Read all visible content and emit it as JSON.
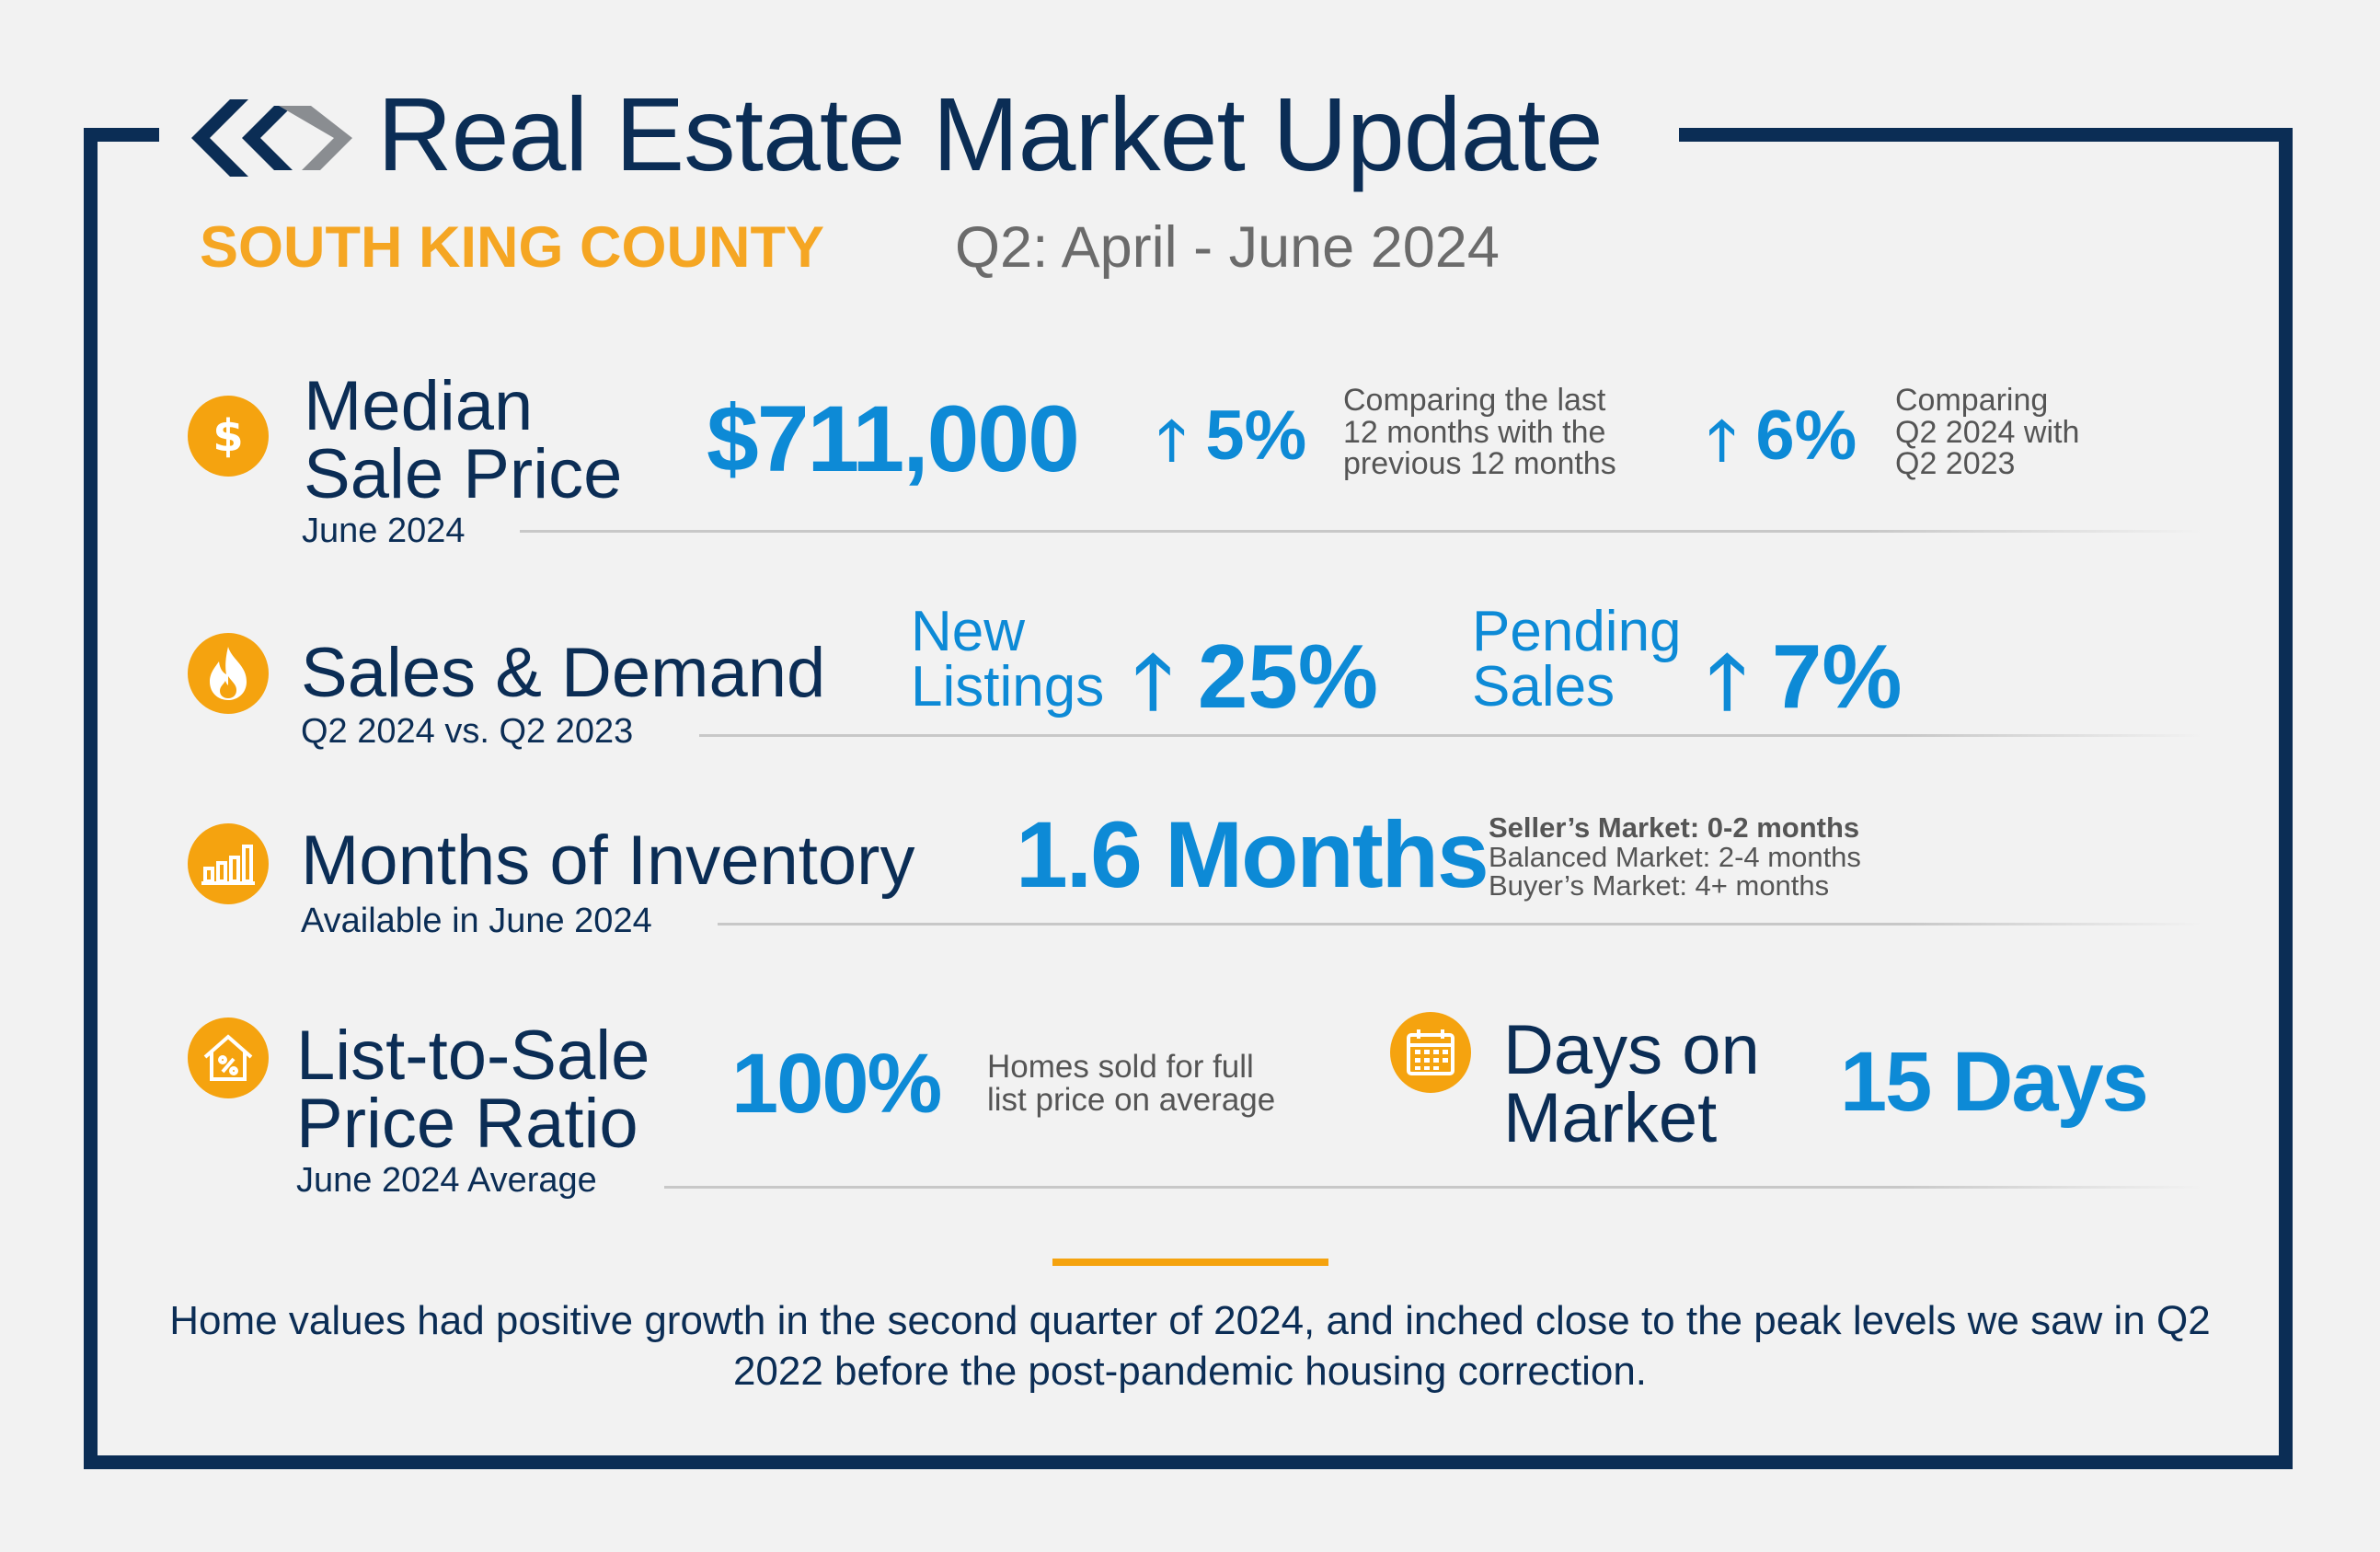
{
  "header": {
    "title": "Real Estate Market Update",
    "region": "SOUTH KING COUNTY",
    "period": "Q2: April - June 2024"
  },
  "median": {
    "label_line1": "Median",
    "label_line2": "Sale Price",
    "sub": "June 2024",
    "value": "$711,000",
    "change1": "5%",
    "note1": [
      "Comparing the last",
      "12 months with the",
      "previous 12 months"
    ],
    "change2": "6%",
    "note2": [
      "Comparing",
      "Q2 2024 with",
      "Q2 2023"
    ]
  },
  "sales": {
    "label": "Sales & Demand",
    "sub": "Q2 2024 vs. Q2 2023",
    "new_listings_line1": "New",
    "new_listings_line2": "Listings",
    "new_listings_change": "25%",
    "pending_line1": "Pending",
    "pending_line2": "Sales",
    "pending_change": "7%"
  },
  "inventory": {
    "label": "Months of Inventory",
    "sub": "Available in June 2024",
    "value": "1.6 Months",
    "legend": [
      "Seller’s Market: 0-2 months",
      "Balanced Market: 2-4 months",
      "Buyer’s Market: 4+ months"
    ]
  },
  "ratio": {
    "label_line1": "List-to-Sale",
    "label_line2": "Price Ratio",
    "sub": "June 2024 Average",
    "value": "100%",
    "note": [
      "Homes sold for full",
      "list price on average"
    ]
  },
  "dom": {
    "label_line1": "Days on",
    "label_line2": "Market",
    "value": "15 Days"
  },
  "summary": "Home values had positive growth in the second quarter of 2024, and inched close to the peak levels we saw in Q2 2022 before the post-pandemic housing correction.",
  "icons": {
    "median": "dollar-icon",
    "sales": "flame-icon",
    "inventory": "bar-chart-icon",
    "ratio": "house-percent-icon",
    "dom": "calendar-icon"
  },
  "colors": {
    "navy": "#0b2d55",
    "orange": "#f5a30f",
    "blue": "#0d8ad6"
  }
}
